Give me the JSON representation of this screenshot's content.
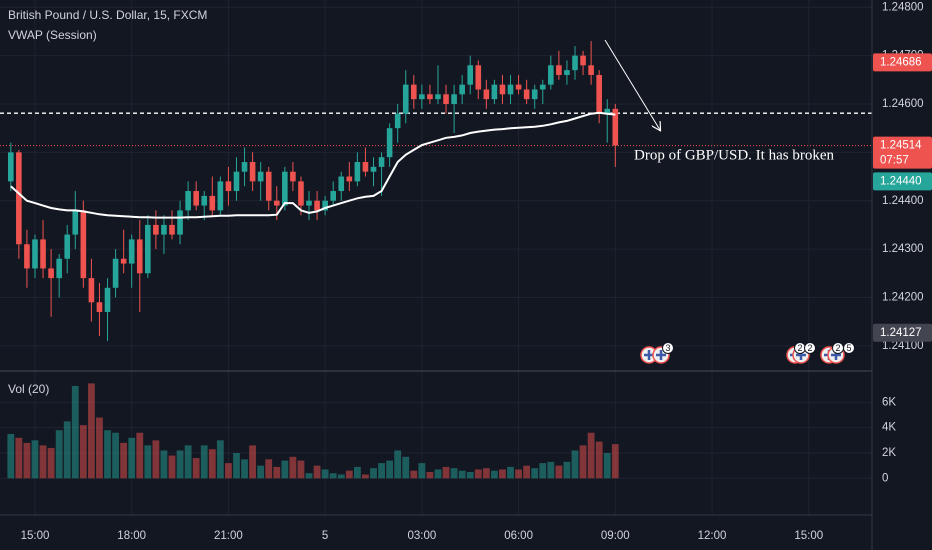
{
  "chart_data": {
    "type": "candlestick",
    "title": "British Pound / U.S. Dollar, 15, FXCM",
    "categories": [
      null,
      null,
      null,
      "15:00",
      null,
      null,
      null,
      null,
      null,
      null,
      null,
      null,
      null,
      null,
      null,
      "18:00",
      null,
      null,
      null,
      null,
      null,
      null,
      null,
      null,
      null,
      null,
      null,
      "21:00",
      null,
      null,
      null,
      null,
      null,
      null,
      null,
      null,
      null,
      null,
      null,
      "5",
      null,
      null,
      null,
      null,
      null,
      null,
      null,
      null,
      null,
      null,
      null,
      "03:00",
      null,
      null,
      null,
      null,
      null,
      null,
      null,
      null,
      null,
      null,
      null,
      "06:00",
      null,
      null,
      null,
      null,
      null,
      null,
      null,
      null,
      null,
      null,
      null,
      "09:00",
      null,
      null,
      null,
      null,
      null,
      null,
      null,
      null,
      null,
      null,
      null,
      "12:00",
      null,
      null,
      null,
      null,
      null,
      null,
      null,
      null,
      null,
      null,
      null,
      "15:00"
    ],
    "open": [
      1.2444,
      1.245,
      1.2431,
      1.2426,
      1.2432,
      1.2426,
      1.2424,
      1.2428,
      1.2433,
      1.2438,
      1.2424,
      1.2419,
      1.2417,
      1.2422,
      1.2428,
      1.2427,
      1.2432,
      1.2425,
      1.2435,
      1.2433,
      1.2435,
      1.2433,
      1.2438,
      1.2442,
      1.2439,
      1.2441,
      1.2438,
      1.2444,
      1.2442,
      1.2446,
      1.2448,
      1.2444,
      1.2446,
      1.244,
      1.2439,
      1.2446,
      1.2444,
      1.2439,
      1.244,
      1.2438,
      1.244,
      1.2442,
      1.2445,
      1.2444,
      1.2448,
      1.2446,
      1.2447,
      1.2449,
      1.2455,
      1.2458,
      1.2464,
      1.2461,
      1.2462,
      1.2461,
      1.2462,
      1.246,
      1.2462,
      1.2464,
      1.2468,
      1.2463,
      1.2461,
      1.2464,
      1.2462,
      1.2464,
      1.2463,
      1.2461,
      1.2463,
      1.2464,
      1.2468,
      1.2466,
      1.2467,
      1.247,
      1.2468,
      1.2466,
      1.2458,
      1.2459,
      null,
      null,
      null,
      null,
      null,
      null,
      null,
      null,
      null,
      null,
      null,
      null,
      null,
      null,
      null,
      null,
      null,
      null,
      null,
      null,
      null,
      null,
      null,
      null
    ],
    "high": [
      1.2452,
      1.24505,
      1.2434,
      1.2433,
      1.2436,
      1.243,
      1.2429,
      1.2435,
      1.2442,
      1.244,
      1.2428,
      1.2423,
      1.2424,
      1.243,
      1.2434,
      1.2433,
      1.2436,
      1.2437,
      1.2438,
      1.2437,
      1.2438,
      1.244,
      1.2444,
      1.2444,
      1.2442,
      1.2445,
      1.2445,
      1.2447,
      1.2449,
      1.2451,
      1.245,
      1.2448,
      1.2447,
      1.2443,
      1.2447,
      1.2448,
      1.2445,
      1.2442,
      1.2442,
      1.2441,
      1.2444,
      1.2446,
      1.2448,
      1.245,
      1.2451,
      1.2449,
      1.245,
      1.2456,
      1.246,
      1.2467,
      1.2466,
      1.2464,
      1.2464,
      1.2468,
      1.2464,
      1.2464,
      1.2466,
      1.247,
      1.2469,
      1.2465,
      1.2465,
      1.2466,
      1.2466,
      1.2466,
      1.2465,
      1.2464,
      1.2465,
      1.247,
      1.2471,
      1.2469,
      1.2472,
      1.2471,
      1.2473,
      1.2467,
      1.2461,
      1.246,
      null,
      null,
      null,
      null,
      null,
      null,
      null,
      null,
      null,
      null,
      null,
      null,
      null,
      null,
      null,
      null,
      null,
      null,
      null,
      null,
      null,
      null,
      null,
      null
    ],
    "low": [
      1.2442,
      1.2428,
      1.2422,
      1.2424,
      1.2424,
      1.2416,
      1.242,
      1.2425,
      1.243,
      1.2422,
      1.2415,
      1.2412,
      1.2411,
      1.242,
      1.2425,
      1.2422,
      1.2417,
      1.2424,
      1.243,
      1.2429,
      1.2432,
      1.2431,
      1.2436,
      1.2438,
      1.2436,
      1.2437,
      1.2437,
      1.2439,
      1.244,
      1.2443,
      1.2442,
      1.244,
      1.2438,
      1.2436,
      1.2438,
      1.2442,
      1.2437,
      1.2436,
      1.2436,
      1.2437,
      1.2439,
      1.244,
      1.2442,
      1.2443,
      1.2445,
      1.2443,
      1.2441,
      1.2447,
      1.2452,
      1.2456,
      1.2459,
      1.2459,
      1.246,
      1.246,
      1.2458,
      1.2454,
      1.246,
      1.2462,
      1.2461,
      1.2459,
      1.246,
      1.246,
      1.246,
      1.2462,
      1.246,
      1.2459,
      1.246,
      1.2463,
      1.2465,
      1.2464,
      1.2465,
      1.2466,
      1.2464,
      1.2456,
      1.2452,
      1.2447,
      null,
      null,
      null,
      null,
      null,
      null,
      null,
      null,
      null,
      null,
      null,
      null,
      null,
      null,
      null,
      null,
      null,
      null,
      null,
      null,
      null,
      null,
      null,
      null
    ],
    "close": [
      1.245,
      1.2431,
      1.2426,
      1.2432,
      1.2426,
      1.2424,
      1.2428,
      1.2433,
      1.2438,
      1.2424,
      1.2419,
      1.2417,
      1.2422,
      1.2428,
      1.2427,
      1.2432,
      1.2425,
      1.2435,
      1.2433,
      1.2435,
      1.2433,
      1.2438,
      1.2442,
      1.2439,
      1.2441,
      1.2438,
      1.2444,
      1.2442,
      1.2446,
      1.2448,
      1.2444,
      1.2446,
      1.244,
      1.2439,
      1.2446,
      1.2444,
      1.2439,
      1.244,
      1.2438,
      1.244,
      1.2442,
      1.2445,
      1.2444,
      1.2448,
      1.2446,
      1.2447,
      1.2449,
      1.2455,
      1.2458,
      1.2464,
      1.2461,
      1.2462,
      1.2461,
      1.2462,
      1.246,
      1.2462,
      1.2464,
      1.2468,
      1.2463,
      1.2461,
      1.2464,
      1.2462,
      1.2464,
      1.2463,
      1.2461,
      1.2463,
      1.2464,
      1.2468,
      1.2466,
      1.2467,
      1.247,
      1.2468,
      1.2466,
      1.2458,
      1.2459,
      1.24514,
      null,
      null,
      null,
      null,
      null,
      null,
      null,
      null,
      null,
      null,
      null,
      null,
      null,
      null,
      null,
      null,
      null,
      null,
      null,
      null,
      null,
      null,
      null,
      null
    ],
    "up_color": "#26a69a",
    "down_color": "#ef5350",
    "vwap": {
      "name": "VWAP (Session)",
      "color": "#ffffff",
      "values": [
        1.2443,
        1.24415,
        1.244,
        1.24395,
        1.2439,
        1.24385,
        1.24382,
        1.2438,
        1.2438,
        1.24378,
        1.24375,
        1.24372,
        1.2437,
        1.24369,
        1.24368,
        1.24367,
        1.24366,
        1.24366,
        1.24365,
        1.24365,
        1.24365,
        1.24365,
        1.24366,
        1.24366,
        1.24367,
        1.24368,
        1.24369,
        1.24369,
        1.2437,
        1.2437,
        1.2437,
        1.2437,
        1.2437,
        1.24371,
        1.24395,
        1.24395,
        1.2438,
        1.24375,
        1.24378,
        1.24385,
        1.2439,
        1.24395,
        1.244,
        1.24405,
        1.24408,
        1.2441,
        1.2442,
        1.2445,
        1.2448,
        1.24495,
        1.24505,
        1.24515,
        1.2452,
        1.24525,
        1.2453,
        1.24532,
        1.24535,
        1.2454,
        1.24543,
        1.24545,
        1.24547,
        1.24548,
        1.2455,
        1.24551,
        1.24552,
        1.24553,
        1.24555,
        1.24558,
        1.24562,
        1.24565,
        1.2457,
        1.24575,
        1.2458,
        1.24582,
        1.2458,
        1.24578,
        null,
        null,
        null,
        null,
        null,
        null,
        null,
        null,
        null,
        null,
        null,
        null,
        null,
        null,
        null,
        null,
        null,
        null,
        null,
        null,
        null,
        null,
        null,
        null
      ]
    },
    "ylim": [
      1.2405,
      1.24815
    ],
    "yticks": [
      {
        "value": 1.248,
        "label": "1.24800"
      },
      {
        "value": 1.247,
        "label": "1.24700"
      },
      {
        "value": 1.246,
        "label": "1.24600"
      },
      {
        "value": 1.245,
        "label": "1.24500"
      },
      {
        "value": 1.244,
        "label": "1.24400"
      },
      {
        "value": 1.243,
        "label": "1.24300"
      },
      {
        "value": 1.242,
        "label": "1.24200"
      },
      {
        "value": 1.241,
        "label": "1.24100"
      }
    ],
    "grid": true,
    "volume": {
      "title": "Vol (20)",
      "values": [
        3500,
        3200,
        2800,
        3000,
        2600,
        2400,
        3800,
        4500,
        7300,
        4200,
        7500,
        4800,
        3800,
        3600,
        2800,
        3200,
        3600,
        2600,
        3000,
        2200,
        1800,
        2200,
        2600,
        1600,
        2600,
        2300,
        3000,
        1200,
        2000,
        1500,
        2600,
        1000,
        1500,
        900,
        1400,
        1700,
        1400,
        400,
        1000,
        700,
        400,
        300,
        600,
        900,
        300,
        800,
        1200,
        1400,
        2200,
        1700,
        600,
        1200,
        500,
        700,
        900,
        800,
        600,
        500,
        700,
        800,
        600,
        700,
        900,
        700,
        1000,
        800,
        1200,
        1300,
        1000,
        1300,
        2200,
        2600,
        3600,
        2900,
        2000,
        2700,
        null,
        null,
        null,
        null,
        null,
        null,
        null,
        null,
        null,
        null,
        null,
        null,
        null,
        null,
        null,
        null,
        null,
        null,
        null,
        null,
        null,
        null,
        null,
        null
      ],
      "ylim": [
        -2900,
        8400
      ],
      "yticks": [
        0,
        {
          "value": 2000,
          "label": "2K"
        },
        {
          "value": 4000,
          "label": "4K"
        },
        {
          "value": 6000,
          "label": "6K"
        }
      ]
    },
    "price_tags": [
      {
        "value": 1.24686,
        "label": "1.24686",
        "color": "#ef5350"
      },
      {
        "value": 1.2444,
        "label": "1.24440",
        "color": "#26a69a"
      },
      {
        "value": 1.24127,
        "label": "1.24127",
        "color": "#434651"
      },
      {
        "value": 1.24514,
        "label": "1.24514",
        "color": "#ef5350",
        "line": "dotted",
        "countdown": "07:57"
      }
    ],
    "hlines": [
      {
        "value": 1.24581,
        "color": "#ffffff",
        "style": "dashed"
      }
    ],
    "annotation": "Drop of GBP/USD. It has broken",
    "events": [
      "3",
      "2",
      "2",
      "2",
      "5"
    ]
  }
}
